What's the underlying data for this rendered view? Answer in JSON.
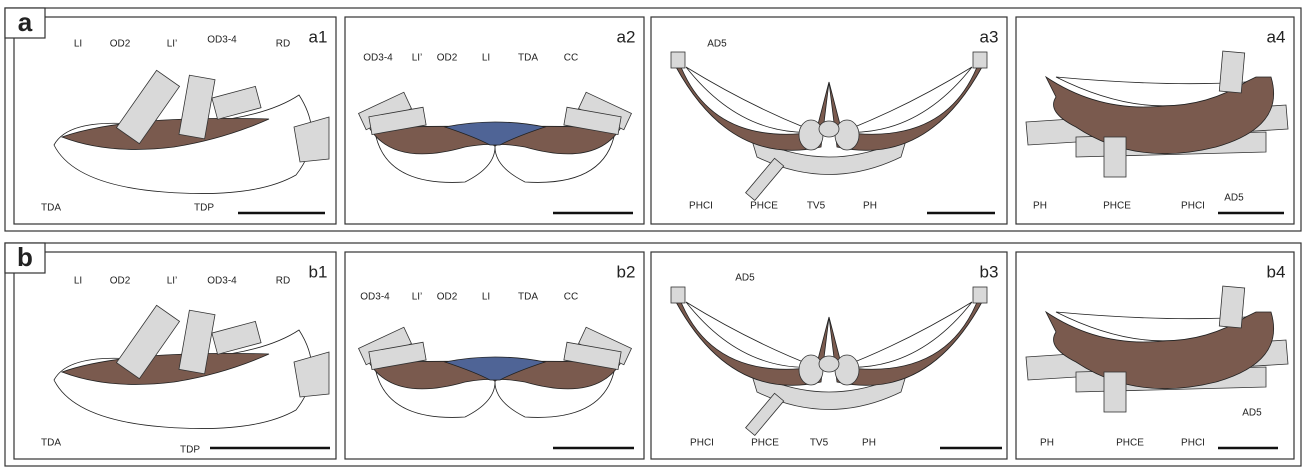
{
  "rows": [
    {
      "letter": "a",
      "panels": [
        {
          "id": "a1",
          "labels": [
            "LI",
            "OD2",
            "LI’",
            "OD3-4",
            "RD",
            "TDA",
            "TDP"
          ]
        },
        {
          "id": "a2",
          "labels": [
            "OD3-4",
            "LI’",
            "OD2",
            "LI",
            "TDA",
            "CC"
          ]
        },
        {
          "id": "a3",
          "labels": [
            "AD5",
            "PHCI",
            "PHCE",
            "TV5",
            "PH"
          ]
        },
        {
          "id": "a4",
          "labels": [
            "PH",
            "PHCE",
            "PHCI",
            "AD5"
          ]
        }
      ]
    },
    {
      "letter": "b",
      "panels": [
        {
          "id": "b1",
          "labels": [
            "LI",
            "OD2",
            "LI’",
            "OD3-4",
            "RD",
            "TDA",
            "TDP"
          ]
        },
        {
          "id": "b2",
          "labels": [
            "OD3-4",
            "LI’",
            "OD2",
            "LI",
            "TDA",
            "CC"
          ]
        },
        {
          "id": "b3",
          "labels": [
            "AD5",
            "PHCI",
            "PHCE",
            "TV5",
            "PH"
          ]
        },
        {
          "id": "b4",
          "labels": [
            "PH",
            "PHCE",
            "PHCI",
            "AD5"
          ]
        }
      ]
    }
  ]
}
